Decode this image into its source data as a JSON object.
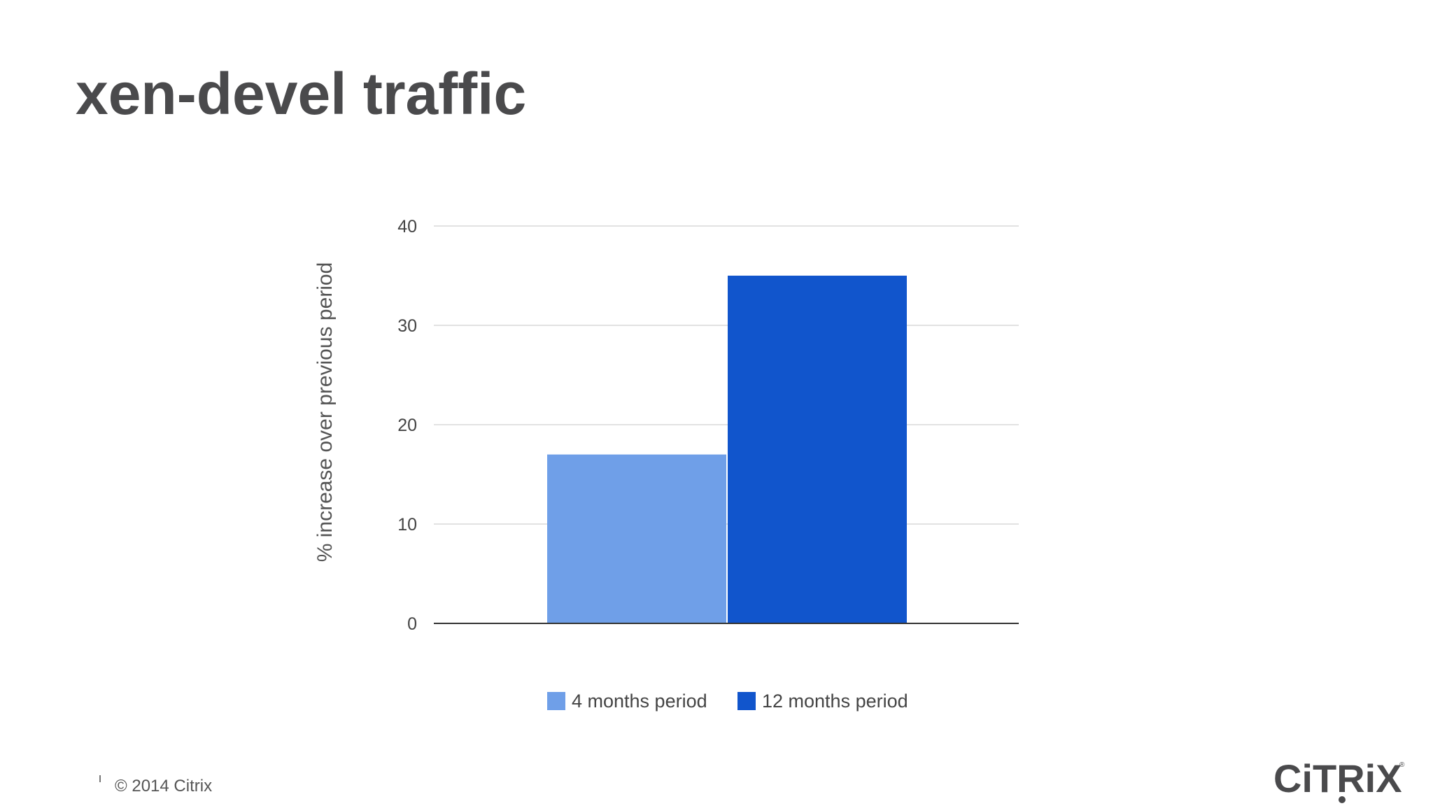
{
  "slide": {
    "title": "xen-devel traffic"
  },
  "chart_data": {
    "type": "bar",
    "title": "",
    "xlabel": "",
    "ylabel": "% increase over previous period",
    "ylim": [
      0,
      40
    ],
    "yticks": [
      0,
      10,
      20,
      30,
      40
    ],
    "grid": true,
    "legend_position": "bottom",
    "categories": [
      ""
    ],
    "series": [
      {
        "name": "4 months period",
        "values": [
          17
        ],
        "color": "#6f9fe8"
      },
      {
        "name": "12 months period",
        "values": [
          35
        ],
        "color": "#1155cc"
      }
    ]
  },
  "footer": {
    "copyright": "© 2014 Citrix",
    "logo_text": "CiTRiX"
  },
  "colors": {
    "title": "#4a4a4c",
    "gridline": "#d9d9d9",
    "axis": "#333333",
    "tick_text": "#444444"
  }
}
